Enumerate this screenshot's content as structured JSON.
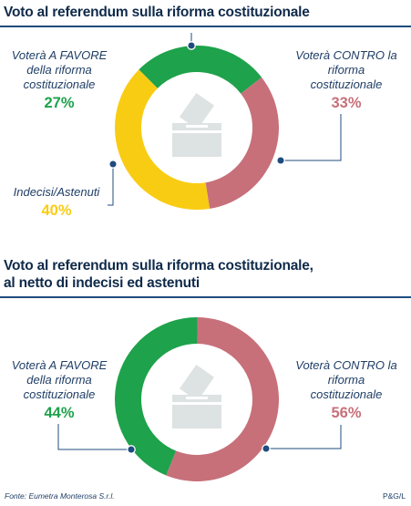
{
  "chart_data": [
    {
      "type": "pie",
      "title": "Voto al referendum sulla riforma costituzionale",
      "categories": [
        "Voterà A FAVORE della riforma costituzionale",
        "Voterà CONTRO la riforma costituzionale",
        "Indecisi/Astenuti"
      ],
      "slices": [
        {
          "label": "Voterà A FAVORE della riforma costituzionale",
          "value_label": "27%",
          "value": 27,
          "color": "#1ea24b"
        },
        {
          "label": "Voterà CONTRO la riforma costituzionale",
          "value_label": "33%",
          "value": 33,
          "color": "#c7707a"
        },
        {
          "label": "Indecisi/Astenuti",
          "value_label": "40%",
          "value": 40,
          "color": "#f9cc14"
        }
      ]
    },
    {
      "type": "pie",
      "title": "Voto al referendum sulla riforma costituzionale, al netto di indecisi ed astenuti",
      "categories": [
        "Voterà A FAVORE della riforma costituzionale",
        "Voterà CONTRO la riforma costituzionale"
      ],
      "slices": [
        {
          "label": "Voterà A FAVORE della riforma costituzionale",
          "value_label": "44%",
          "value": 44,
          "color": "#1ea24b"
        },
        {
          "label": "Voterà CONTRO la riforma costituzionale",
          "value_label": "56%",
          "value": 56,
          "color": "#c7707a"
        }
      ]
    }
  ],
  "labels": {
    "chart1": {
      "favore": [
        "Voterà A FAVORE",
        "della riforma",
        "costituzionale"
      ],
      "contro": [
        "Voterà CONTRO la",
        "riforma",
        "costituzionale"
      ],
      "indecisi": [
        "Indecisi/Astenuti"
      ]
    },
    "chart2": {
      "favore": [
        "Voterà A FAVORE",
        "della riforma",
        "costituzionale"
      ],
      "contro": [
        "Voterà CONTRO la",
        "riforma",
        "costituzionale"
      ]
    }
  },
  "titles": {
    "chart1": [
      "Voto al referendum sulla riforma costituzionale"
    ],
    "chart2": [
      "Voto al referendum sulla riforma costituzionale,",
      "al netto di indecisi ed astenuti"
    ]
  },
  "footer": {
    "source": "Fonte: Eumetra Monterosa S.r.l.",
    "credit": "P&G/L"
  },
  "icons": {
    "center": "ballot-box-icon",
    "anchor": "leader-dot-icon"
  },
  "colors": {
    "favore": "#1ea24b",
    "contro": "#c7707a",
    "indecisi": "#f9cc14",
    "title": "#0f2a4a",
    "rule": "#1f4c7e",
    "leader": "#1f4c7e",
    "icon": "#dde3e2"
  }
}
